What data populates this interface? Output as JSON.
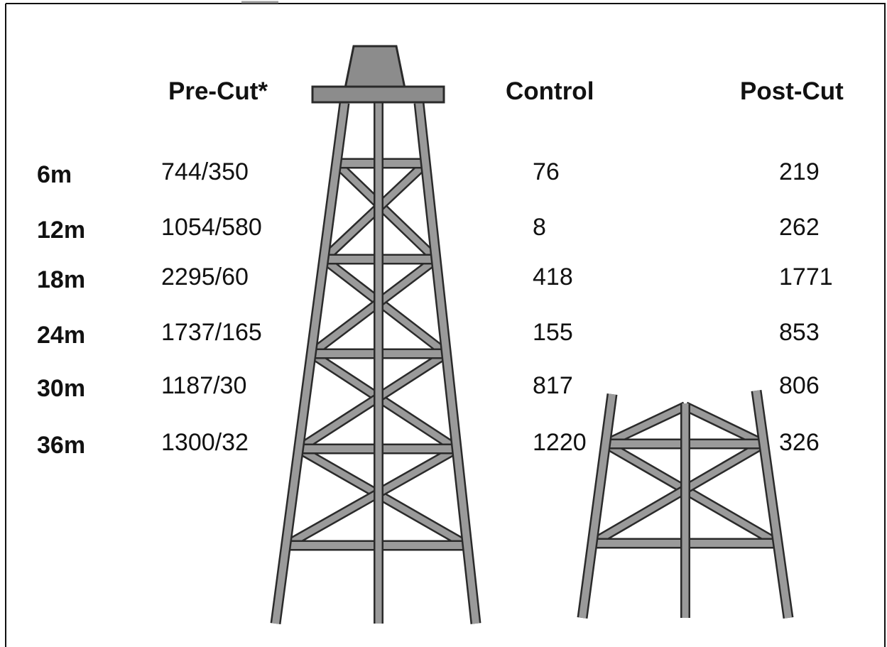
{
  "headers": [
    "Pre-Cut*",
    "Control",
    "Post-Cut"
  ],
  "rows": [
    {
      "label": "6m",
      "values": [
        "744/350",
        "76",
        "219"
      ]
    },
    {
      "label": "12m",
      "values": [
        "1054/580",
        "8",
        "262"
      ]
    },
    {
      "label": "18m",
      "values": [
        "2295/60",
        "418",
        "1771"
      ]
    },
    {
      "label": "24m",
      "values": [
        "1737/165",
        "155",
        "853"
      ]
    },
    {
      "label": "30m",
      "values": [
        "1187/30",
        "817",
        "806"
      ]
    },
    {
      "label": "36m",
      "values": [
        "1300/32",
        "1220",
        "326"
      ]
    }
  ]
}
